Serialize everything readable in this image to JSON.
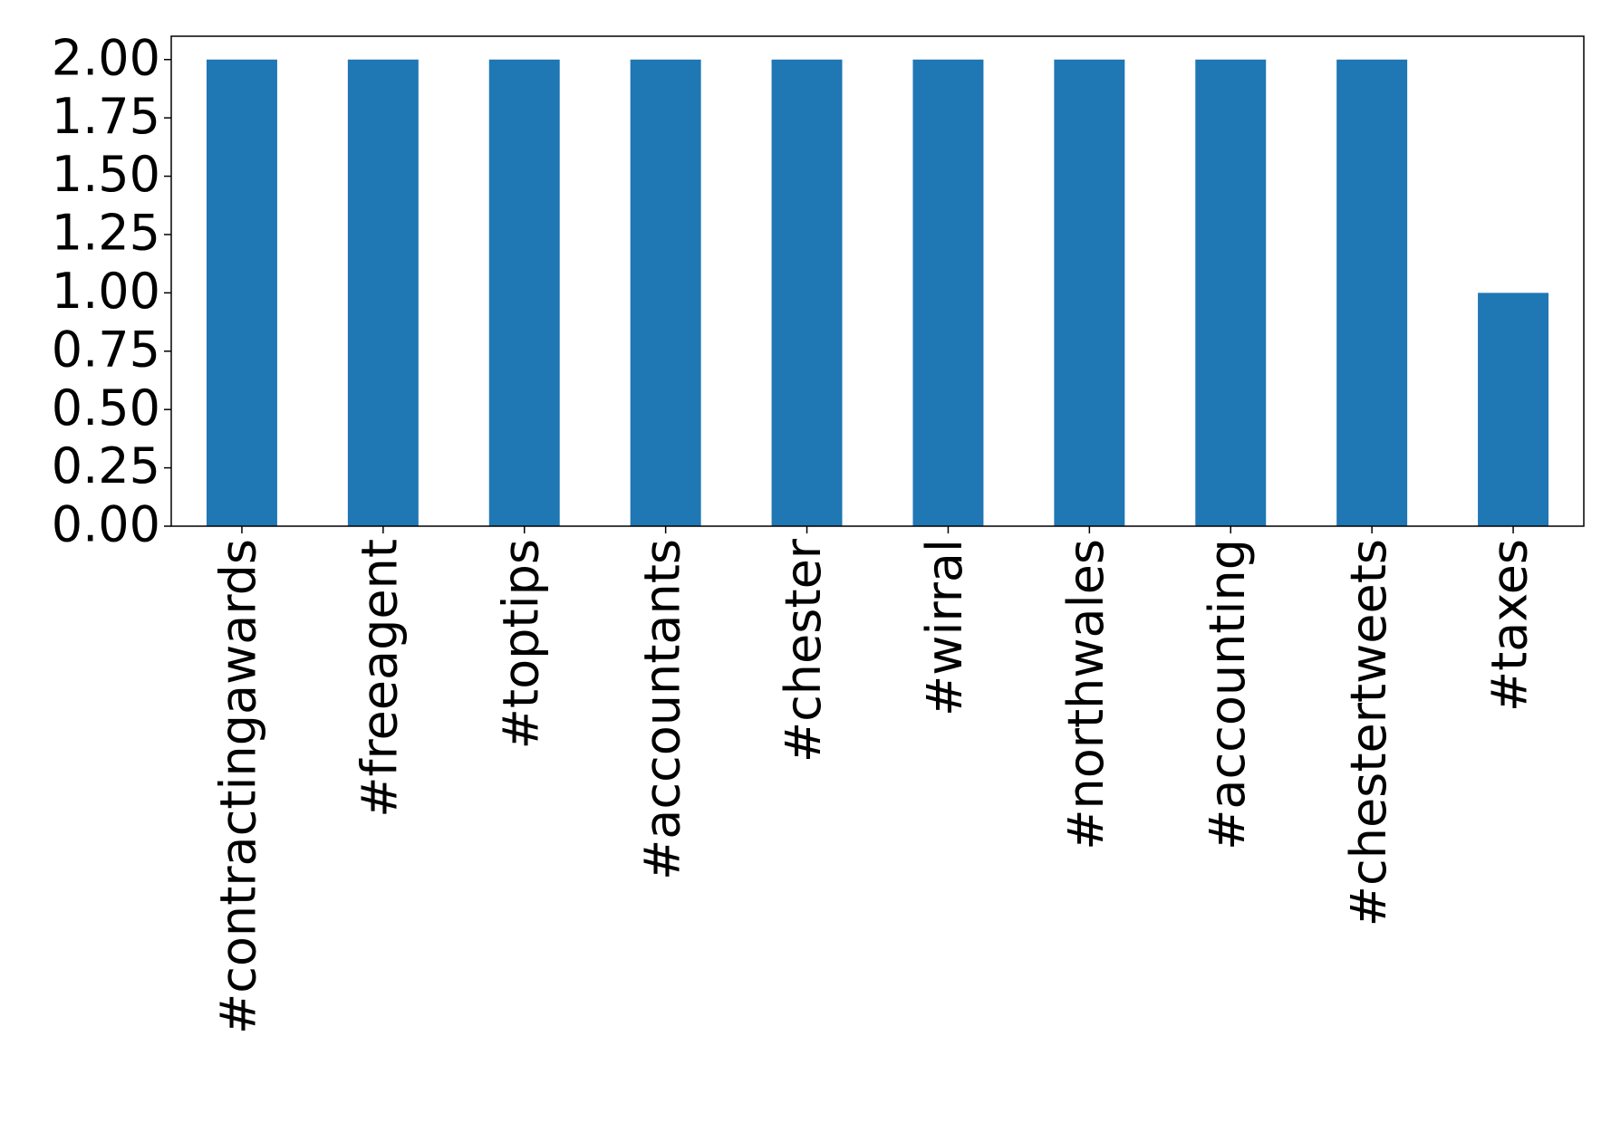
{
  "chart_data": {
    "type": "bar",
    "categories": [
      "#contractingawards",
      "#freeagent",
      "#toptips",
      "#accountants",
      "#chester",
      "#wirral",
      "#northwales",
      "#accounting",
      "#chestertweets",
      "#taxes"
    ],
    "values": [
      2,
      2,
      2,
      2,
      2,
      2,
      2,
      2,
      2,
      1
    ],
    "color": "#1f77b4",
    "ylim": [
      0,
      2.1
    ],
    "yticks": [
      {
        "value": 0,
        "label": "0.00"
      },
      {
        "value": 0.25,
        "label": "0.25"
      },
      {
        "value": 0.5,
        "label": "0.50"
      },
      {
        "value": 0.75,
        "label": "0.75"
      },
      {
        "value": 1,
        "label": "1.00"
      },
      {
        "value": 1.25,
        "label": "1.25"
      },
      {
        "value": 1.5,
        "label": "1.50"
      },
      {
        "value": 1.75,
        "label": "1.75"
      },
      {
        "value": 2,
        "label": "2.00"
      }
    ],
    "grid": false
  }
}
